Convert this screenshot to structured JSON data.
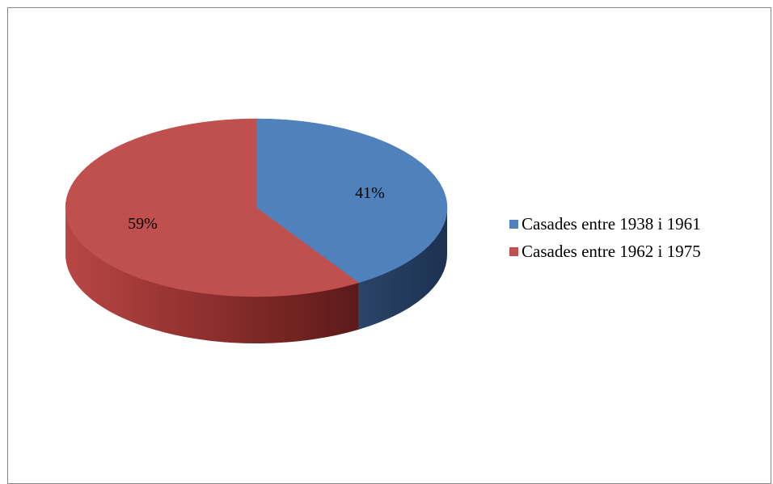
{
  "chart_data": {
    "type": "pie",
    "title": "",
    "categories": [
      "Casades entre 1938 i 1961",
      "Casades entre 1962 i 1975"
    ],
    "values": [
      41,
      59
    ],
    "data_labels": [
      "41%",
      "59%"
    ],
    "colors": [
      "#4f81bd",
      "#c0504d"
    ],
    "legend_position": "right",
    "style": "3d"
  }
}
